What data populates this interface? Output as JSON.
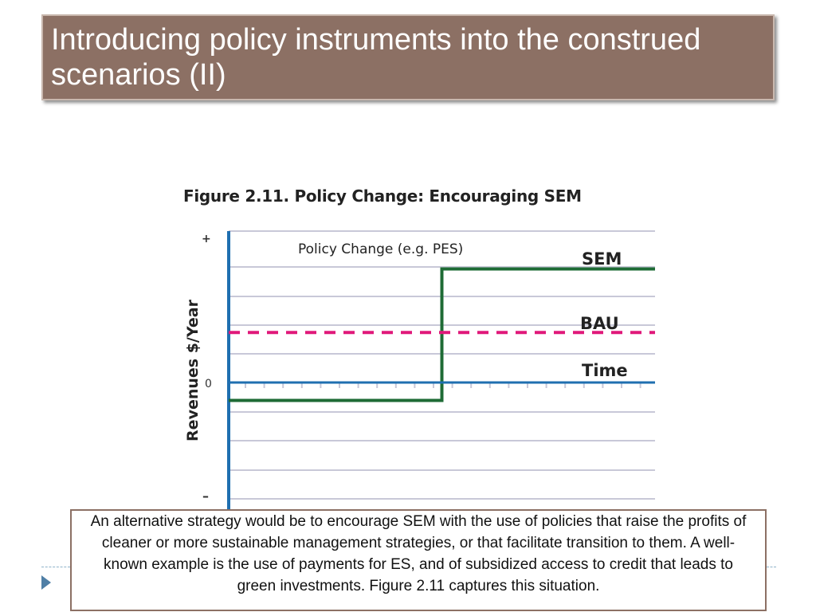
{
  "slide": {
    "title": "Introducing policy instruments into the construed scenarios (II)",
    "caption": "An alternative strategy would be to encourage SEM with the use of policies that raise the profits of cleaner or more sustainable management strategies, or that facilitate transition to them.  A well-known example  is the use of payments for ES, and of subsidized access to credit that leads to green investments.  Figure 2.11 captures this situation."
  },
  "chart_data": {
    "type": "line",
    "title": "Figure 2.11. Policy Change: Encouraging SEM",
    "ylabel": "Revenues $/Year",
    "xlabel": "Time",
    "yticks": {
      "top": "+",
      "zero": "0",
      "bottom": "–"
    },
    "annotation": "Policy Change (e.g. PES)",
    "grid": true,
    "x": [
      0,
      1
    ],
    "policy_change_x": 0.5,
    "ylim": [
      -1,
      1
    ],
    "series": [
      {
        "name": "SEM",
        "style": "solid",
        "color": "#1e6b35",
        "x": [
          0,
          0.5,
          0.5,
          1.0
        ],
        "y": [
          -0.15,
          -0.15,
          0.75,
          0.75
        ]
      },
      {
        "name": "BAU",
        "style": "dashed",
        "color": "#e0197a",
        "x": [
          0,
          1.0
        ],
        "y": [
          0.33,
          0.33
        ]
      },
      {
        "name": "Time",
        "style": "solid",
        "color": "#1f6fb0",
        "x": [
          0,
          1.0
        ],
        "y": [
          0,
          0
        ]
      }
    ],
    "colors": {
      "axis": "#1f6fb0",
      "grid": "#c8c8d8"
    }
  }
}
